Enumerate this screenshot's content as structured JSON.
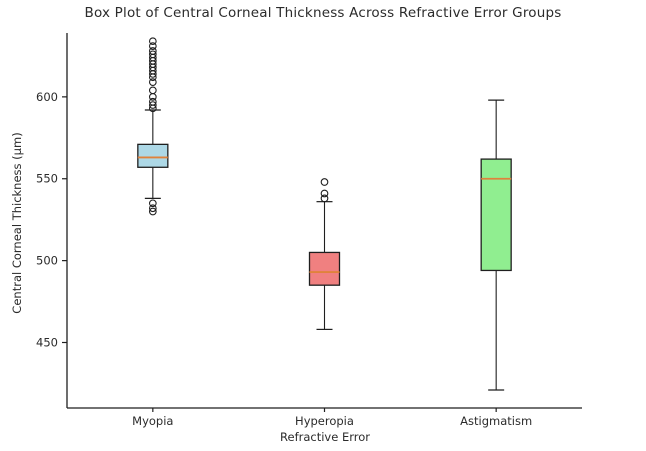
{
  "chart_data": {
    "type": "boxplot",
    "title": "Box Plot of Central Corneal Thickness Across Refractive Error Groups",
    "xlabel": "Refractive Error",
    "ylabel": "Central Corneal Thickness (μm)",
    "ylim": [
      410,
      639
    ],
    "yticks": [
      450,
      500,
      550,
      600
    ],
    "grid": false,
    "legend": null,
    "spines": [
      "left",
      "bottom"
    ],
    "categories": [
      "Myopia",
      "Hyperopia",
      "Astigmatism"
    ],
    "box_colors": [
      "#add8e6",
      "#f08080",
      "#90ee90"
    ],
    "median_color": "#e0823c",
    "edge_color": "#1f1f1f",
    "text_color": "#2b2b2b",
    "series": [
      {
        "name": "Myopia",
        "whisker_low": 538,
        "q1": 557,
        "median": 563,
        "q3": 571,
        "whisker_high": 592,
        "outliers": [
          530,
          532,
          535,
          593,
          595,
          597,
          600,
          604,
          609,
          612,
          614,
          616,
          618,
          620,
          622,
          624,
          626,
          628,
          631,
          634
        ]
      },
      {
        "name": "Hyperopia",
        "whisker_low": 458,
        "q1": 485,
        "median": 493,
        "q3": 505,
        "whisker_high": 536,
        "outliers": [
          538,
          541,
          548
        ]
      },
      {
        "name": "Astigmatism",
        "whisker_low": 421,
        "q1": 494,
        "median": 550,
        "q3": 562,
        "whisker_high": 598,
        "outliers": []
      }
    ]
  }
}
